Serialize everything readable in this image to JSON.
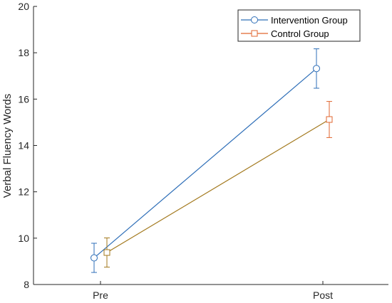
{
  "chart_data": {
    "type": "line",
    "categories": [
      "Pre",
      "Post"
    ],
    "ylabel": "Verbal Fluency Words",
    "xlabel": "",
    "ylim": [
      8,
      20
    ],
    "yticks": [
      8,
      10,
      12,
      14,
      16,
      18,
      20
    ],
    "grid": false,
    "legend_position": "top-right",
    "series": [
      {
        "name": "Intervention Group",
        "marker": "circle",
        "color": "#2F6FB8",
        "values": [
          9.15,
          17.32
        ],
        "error": [
          0.63,
          0.85
        ]
      },
      {
        "name": "Control Group",
        "marker": "square",
        "color": "#E0662F",
        "values": [
          9.38,
          15.12
        ],
        "error": [
          0.63,
          0.78
        ]
      }
    ],
    "pre_segment_colors": [
      "#2F6FB8",
      "#A3791E"
    ]
  }
}
